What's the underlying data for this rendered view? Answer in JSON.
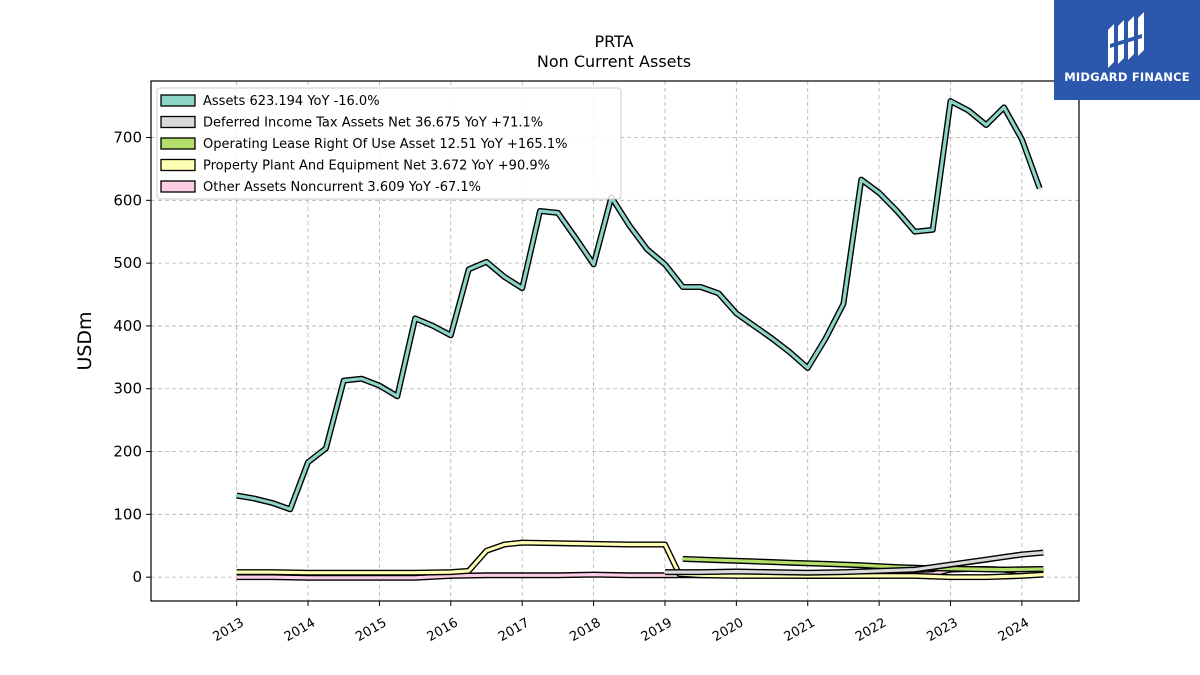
{
  "chart_data": {
    "type": "line",
    "title": "PRTA",
    "subtitle": "Non Current  Assets",
    "ylabel": "USDm",
    "xlabel": "",
    "ylim": [
      -38,
      790
    ],
    "xlim": [
      2011.8,
      2024.8
    ],
    "yticks": [
      0,
      100,
      200,
      300,
      400,
      500,
      600,
      700
    ],
    "xticks": [
      "2013",
      "2014",
      "2015",
      "2016",
      "2017",
      "2018",
      "2019",
      "2020",
      "2021",
      "2022",
      "2023",
      "2024"
    ],
    "grid": true,
    "legend_position": "top-left",
    "series": [
      {
        "name": "Assets  623.194 YoY -16.0%",
        "color": "#8dd3c7",
        "x": [
          2013.0,
          2013.25,
          2013.5,
          2013.75,
          2014.0,
          2014.25,
          2014.5,
          2014.75,
          2015.0,
          2015.25,
          2015.5,
          2015.75,
          2016.0,
          2016.25,
          2016.5,
          2016.75,
          2017.0,
          2017.25,
          2017.5,
          2017.75,
          2018.0,
          2018.25,
          2018.5,
          2018.75,
          2019.0,
          2019.25,
          2019.5,
          2019.75,
          2020.0,
          2020.25,
          2020.5,
          2020.75,
          2021.0,
          2021.25,
          2021.5,
          2021.75,
          2022.0,
          2022.25,
          2022.5,
          2022.75,
          2023.0,
          2023.25,
          2023.5,
          2023.75,
          2024.0,
          2024.25
        ],
        "values": [
          130,
          125,
          118,
          108,
          183,
          205,
          313,
          316,
          305,
          288,
          412,
          400,
          385,
          490,
          502,
          478,
          460,
          583,
          580,
          540,
          498,
          605,
          560,
          522,
          498,
          462,
          462,
          452,
          420,
          400,
          380,
          358,
          333,
          380,
          435,
          633,
          612,
          583,
          550,
          553,
          758,
          743,
          720,
          748,
          697,
          619
        ]
      },
      {
        "name": "Deferred Income Tax Assets Net  36.675 YoY +71.1%",
        "color": "#d9d9d9",
        "x": [
          2019.0,
          2019.5,
          2020.0,
          2020.5,
          2021.0,
          2021.5,
          2022.0,
          2022.5,
          2022.75,
          2023.0,
          2023.25,
          2023.5,
          2023.75,
          2024.0,
          2024.3
        ],
        "values": [
          8,
          8,
          9,
          8,
          7,
          8,
          10,
          12,
          16,
          20,
          24,
          28,
          32,
          36,
          39
        ]
      },
      {
        "name": "Operating Lease Right Of Use Asset  12.51 YoY +165.1%",
        "color": "#b3de69",
        "x": [
          2019.25,
          2019.75,
          2020.25,
          2020.75,
          2021.25,
          2021.75,
          2022.25,
          2022.75,
          2023.25,
          2023.75,
          2024.3
        ],
        "values": [
          29,
          27,
          25,
          23,
          21,
          19,
          16,
          14,
          13,
          12,
          13
        ]
      },
      {
        "name": "Property Plant And Equipment Net  3.672 YoY +90.9%",
        "color": "#ffffb3",
        "x": [
          2013.0,
          2013.5,
          2014.0,
          2014.5,
          2015.0,
          2015.5,
          2016.0,
          2016.25,
          2016.5,
          2016.75,
          2017.0,
          2017.5,
          2018.0,
          2018.5,
          2019.0,
          2019.2,
          2019.5,
          2020.0,
          2021.0,
          2022.0,
          2022.5,
          2023.0,
          2023.5,
          2023.75,
          2024.0,
          2024.3
        ],
        "values": [
          8,
          8,
          7,
          7,
          7,
          7,
          8,
          10,
          42,
          52,
          55,
          54,
          53,
          52,
          52,
          5,
          3,
          2,
          2,
          2,
          2,
          0,
          0,
          1,
          2,
          4
        ]
      },
      {
        "name": "Other Assets Noncurrent  3.609 YoY -67.1%",
        "color": "#fccde5",
        "x": [
          2013.0,
          2013.5,
          2014.0,
          2014.5,
          2015.0,
          2015.5,
          2016.0,
          2016.5,
          2017.0,
          2017.5,
          2018.0,
          2018.5,
          2019.0,
          2019.5,
          2020.0,
          2020.5,
          2021.0,
          2021.5,
          2022.0,
          2022.5,
          2022.75,
          2023.0,
          2023.25,
          2023.5,
          2023.75,
          2024.0,
          2024.3
        ],
        "values": [
          0,
          0,
          -1,
          -1,
          -1,
          -1,
          2,
          3,
          3,
          3,
          4,
          3,
          3,
          3,
          3,
          3,
          2,
          2,
          2,
          4,
          5,
          12,
          13,
          13,
          12,
          8,
          4
        ]
      }
    ]
  },
  "logo": {
    "text": "MIDGARD FINANCE",
    "color": "#2b58ad"
  }
}
